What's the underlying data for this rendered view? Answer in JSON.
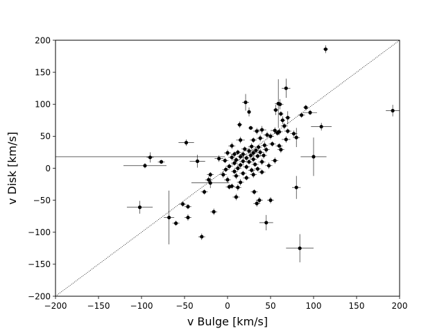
{
  "chart_data": {
    "type": "scatter",
    "title": "",
    "xlabel": "v Bulge [km/s]",
    "ylabel": "v Disk [km/s]",
    "xlim": [
      -200,
      200
    ],
    "ylim": [
      -200,
      200
    ],
    "xticks": [
      -200,
      -150,
      -100,
      -50,
      0,
      50,
      100,
      150,
      200
    ],
    "yticks": [
      -200,
      -150,
      -100,
      -50,
      0,
      50,
      100,
      150,
      200
    ],
    "grid": false,
    "reference_line": {
      "style": "dotted",
      "slope": 1,
      "intercept": 0
    },
    "marker_color": "#000000",
    "series": [
      {
        "points": [
          {
            "x": 114,
            "y": 186,
            "xerr": 3,
            "yerr": 6
          },
          {
            "x": 192,
            "y": 90,
            "xerr": 8,
            "yerr": 9
          },
          {
            "x": 68,
            "y": 125,
            "xerr": 5,
            "yerr": 15
          },
          {
            "x": 59,
            "y": 101,
            "xerr": 4,
            "yerr": 38
          },
          {
            "x": 61,
            "y": 100,
            "xerr": 4,
            "yerr": 8
          },
          {
            "x": 21,
            "y": 103,
            "xerr": 4,
            "yerr": 13
          },
          {
            "x": 25,
            "y": 88,
            "xerr": 2,
            "yerr": 7
          },
          {
            "x": 91,
            "y": 95,
            "xerr": 3,
            "yerr": 4
          },
          {
            "x": 96,
            "y": 87,
            "xerr": 8,
            "yerr": 4
          },
          {
            "x": 56,
            "y": 91,
            "xerr": 3,
            "yerr": 8
          },
          {
            "x": 62,
            "y": 85,
            "xerr": 3,
            "yerr": 4
          },
          {
            "x": 70,
            "y": 79,
            "xerr": 3,
            "yerr": 10
          },
          {
            "x": 86,
            "y": 83,
            "xerr": 4,
            "yerr": 4
          },
          {
            "x": 64,
            "y": 75,
            "xerr": 3,
            "yerr": 6
          },
          {
            "x": 14,
            "y": 68,
            "xerr": 3,
            "yerr": 5
          },
          {
            "x": 109,
            "y": 65,
            "xerr": 12,
            "yerr": 6
          },
          {
            "x": 27,
            "y": 63,
            "xerr": 3,
            "yerr": 3
          },
          {
            "x": 66,
            "y": 66,
            "xerr": 4,
            "yerr": 5
          },
          {
            "x": 40,
            "y": 60,
            "xerr": 5,
            "yerr": 6
          },
          {
            "x": 55,
            "y": 59,
            "xerr": 5,
            "yerr": 5
          },
          {
            "x": 60,
            "y": 57,
            "xerr": 4,
            "yerr": 5
          },
          {
            "x": 70,
            "y": 58,
            "xerr": 4,
            "yerr": 4
          },
          {
            "x": 77,
            "y": 54,
            "xerr": 4,
            "yerr": 5
          },
          {
            "x": 34,
            "y": 58,
            "xerr": 4,
            "yerr": 5
          },
          {
            "x": 80,
            "y": 48,
            "xerr": 4,
            "yerr": 15
          },
          {
            "x": 46,
            "y": 52,
            "xerr": 4,
            "yerr": 5
          },
          {
            "x": 58,
            "y": 55,
            "xerr": 4,
            "yerr": 4
          },
          {
            "x": 50,
            "y": 50,
            "xerr": 4,
            "yerr": 5
          },
          {
            "x": 68,
            "y": 45,
            "xerr": 5,
            "yerr": 5
          },
          {
            "x": 38,
            "y": 47,
            "xerr": 4,
            "yerr": 5
          },
          {
            "x": 15,
            "y": 44,
            "xerr": 5,
            "yerr": 5
          },
          {
            "x": 30,
            "y": 44,
            "xerr": 4,
            "yerr": 4
          },
          {
            "x": -48,
            "y": 40,
            "xerr": 9,
            "yerr": 5
          },
          {
            "x": 52,
            "y": 38,
            "xerr": 4,
            "yerr": 4
          },
          {
            "x": 60,
            "y": 35,
            "xerr": 4,
            "yerr": 4
          },
          {
            "x": 43,
            "y": 36,
            "xerr": 4,
            "yerr": 5
          },
          {
            "x": 28,
            "y": 34,
            "xerr": 4,
            "yerr": 5
          },
          {
            "x": 5,
            "y": 35,
            "xerr": 4,
            "yerr": 5
          },
          {
            "x": 36,
            "y": 33,
            "xerr": 4,
            "yerr": 4
          },
          {
            "x": 20,
            "y": 30,
            "xerr": 4,
            "yerr": 4
          },
          {
            "x": 62,
            "y": 29,
            "xerr": 4,
            "yerr": 5
          },
          {
            "x": 45,
            "y": 29,
            "xerr": 4,
            "yerr": 5
          },
          {
            "x": 33,
            "y": 28,
            "xerr": 4,
            "yerr": 4
          },
          {
            "x": 25,
            "y": 27,
            "xerr": 4,
            "yerr": 5
          },
          {
            "x": 38,
            "y": 25,
            "xerr": 4,
            "yerr": 5
          },
          {
            "x": 12,
            "y": 25,
            "xerr": 4,
            "yerr": 4
          },
          {
            "x": 30,
            "y": 24,
            "xerr": 4,
            "yerr": 4
          },
          {
            "x": 0,
            "y": 24,
            "xerr": 4,
            "yerr": 5
          },
          {
            "x": 18,
            "y": 22,
            "xerr": 4,
            "yerr": 5
          },
          {
            "x": 8,
            "y": 22,
            "xerr": 4,
            "yerr": 4
          },
          {
            "x": 27,
            "y": 20,
            "xerr": 4,
            "yerr": 5
          },
          {
            "x": 42,
            "y": 20,
            "xerr": 4,
            "yerr": 5
          },
          {
            "x": 35,
            "y": 19,
            "xerr": 4,
            "yerr": 4
          },
          {
            "x": 15,
            "y": 18,
            "xerr": 4,
            "yerr": 4
          },
          {
            "x": 5,
            "y": 17,
            "xerr": 4,
            "yerr": 5
          },
          {
            "x": 22,
            "y": 16,
            "xerr": 4,
            "yerr": 4
          },
          {
            "x": -10,
            "y": 15,
            "xerr": 5,
            "yerr": 5
          },
          {
            "x": 30,
            "y": 14,
            "xerr": 4,
            "yerr": 5
          },
          {
            "x": 10,
            "y": 13,
            "xerr": 4,
            "yerr": 4
          },
          {
            "x": -3,
            "y": 12,
            "xerr": 4,
            "yerr": 4
          },
          {
            "x": 18,
            "y": 11,
            "xerr": 4,
            "yerr": 5
          },
          {
            "x": 25,
            "y": 10,
            "xerr": 4,
            "yerr": 4
          },
          {
            "x": 40,
            "y": 10,
            "xerr": 4,
            "yerr": 5
          },
          {
            "x": 55,
            "y": 12,
            "xerr": 4,
            "yerr": 5
          },
          {
            "x": -35,
            "y": 11,
            "xerr": 9,
            "yerr": 10
          },
          {
            "x": -77,
            "y": 10,
            "xerr": 4,
            "yerr": 3
          },
          {
            "x": -90,
            "y": 17,
            "xerr": 4,
            "yerr": 8
          },
          {
            "x": -96,
            "y": 4,
            "xerr": 25,
            "yerr": 4
          },
          {
            "x": 100,
            "y": 18,
            "xerr": 15,
            "yerr": 30
          },
          {
            "x": 8,
            "y": 8,
            "xerr": 4,
            "yerr": 4
          },
          {
            "x": 32,
            "y": 6,
            "xerr": 4,
            "yerr": 4
          },
          {
            "x": 15,
            "y": 5,
            "xerr": 4,
            "yerr": 4
          },
          {
            "x": 48,
            "y": 4,
            "xerr": 4,
            "yerr": 5
          },
          {
            "x": 2,
            "y": 3,
            "xerr": 4,
            "yerr": 4
          },
          {
            "x": 22,
            "y": 2,
            "xerr": 4,
            "yerr": 4
          },
          {
            "x": 12,
            "y": 0,
            "xerr": 4,
            "yerr": 4
          },
          {
            "x": 35,
            "y": -1,
            "xerr": 4,
            "yerr": 4
          },
          {
            "x": -2,
            "y": -2,
            "xerr": 4,
            "yerr": 4
          },
          {
            "x": 28,
            "y": -3,
            "xerr": 4,
            "yerr": 4
          },
          {
            "x": 8,
            "y": -5,
            "xerr": 4,
            "yerr": 4
          },
          {
            "x": 40,
            "y": -6,
            "xerr": 4,
            "yerr": 4
          },
          {
            "x": 18,
            "y": -8,
            "xerr": 4,
            "yerr": 4
          },
          {
            "x": -20,
            "y": -10,
            "xerr": 4,
            "yerr": 4
          },
          {
            "x": -5,
            "y": -10,
            "xerr": 4,
            "yerr": 5
          },
          {
            "x": 30,
            "y": -10,
            "xerr": 4,
            "yerr": 5
          },
          {
            "x": 10,
            "y": -12,
            "xerr": 4,
            "yerr": 5
          },
          {
            "x": 22,
            "y": -15,
            "xerr": 4,
            "yerr": 4
          },
          {
            "x": 0,
            "y": -18,
            "xerr": 4,
            "yerr": 5
          },
          {
            "x": -22,
            "y": -18,
            "xerr": 4,
            "yerr": 5
          },
          {
            "x": 15,
            "y": -22,
            "xerr": 4,
            "yerr": 5
          },
          {
            "x": -20,
            "y": -23,
            "xerr": 22,
            "yerr": 8
          },
          {
            "x": 5,
            "y": -28,
            "xerr": 4,
            "yerr": 4
          },
          {
            "x": 12,
            "y": -30,
            "xerr": 4,
            "yerr": 5
          },
          {
            "x": 2,
            "y": -29,
            "xerr": 4,
            "yerr": 4
          },
          {
            "x": 80,
            "y": -30,
            "xerr": 5,
            "yerr": 18
          },
          {
            "x": -27,
            "y": -37,
            "xerr": 4,
            "yerr": 4
          },
          {
            "x": 31,
            "y": -37,
            "xerr": 4,
            "yerr": 4
          },
          {
            "x": 10,
            "y": -45,
            "xerr": 4,
            "yerr": 5
          },
          {
            "x": 37,
            "y": -50,
            "xerr": 4,
            "yerr": 5
          },
          {
            "x": 50,
            "y": -50,
            "xerr": 4,
            "yerr": 5
          },
          {
            "x": 34,
            "y": -55,
            "xerr": 4,
            "yerr": 5
          },
          {
            "x": -52,
            "y": -56,
            "xerr": 4,
            "yerr": 4
          },
          {
            "x": -46,
            "y": -60,
            "xerr": 4,
            "yerr": 4
          },
          {
            "x": -102,
            "y": -61,
            "xerr": 15,
            "yerr": 10
          },
          {
            "x": -16,
            "y": -68,
            "xerr": 4,
            "yerr": 5
          },
          {
            "x": -46,
            "y": -77,
            "xerr": 4,
            "yerr": 5
          },
          {
            "x": -68,
            "y": -77,
            "xerr": 6,
            "yerr": 42
          },
          {
            "x": -60,
            "y": -86,
            "xerr": 4,
            "yerr": 4
          },
          {
            "x": 45,
            "y": -85,
            "xerr": 8,
            "yerr": 12
          },
          {
            "x": -30,
            "y": -107,
            "xerr": 4,
            "yerr": 5
          },
          {
            "x": 84,
            "y": -125,
            "xerr": 16,
            "yerr": 22
          }
        ]
      }
    ]
  },
  "extra_errorbars": [
    {
      "x": -200,
      "y": 18,
      "xerr_left": 0,
      "xerr_right": 197
    }
  ]
}
